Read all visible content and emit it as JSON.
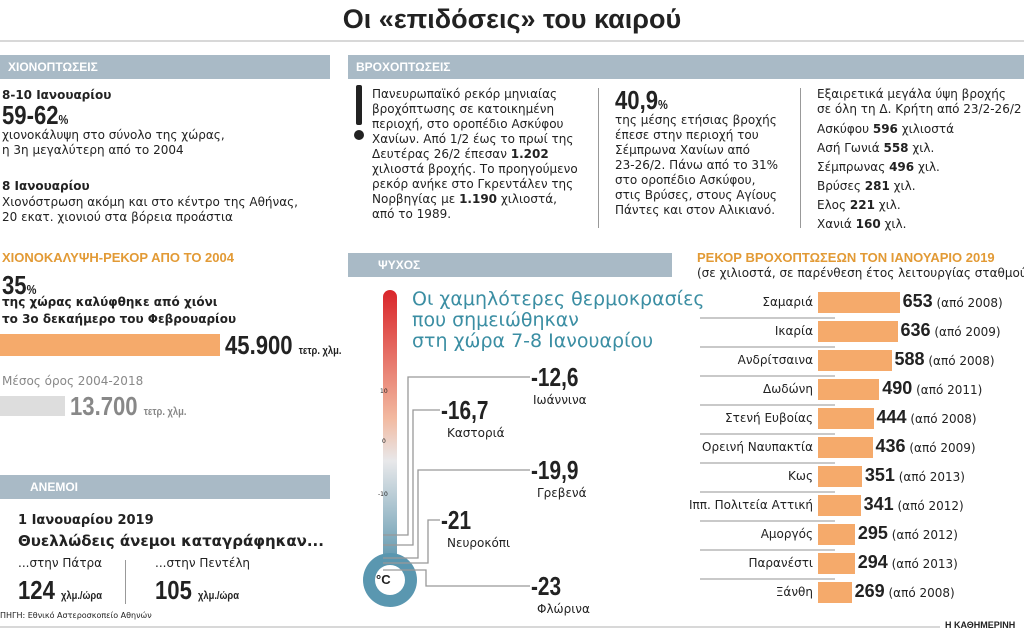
{
  "title": "Οι «επιδόσεις» του καιρού",
  "colors": {
    "header": "#a9bac6",
    "orange": "#f5aa6b",
    "heading_orange": "#e29a35",
    "teal": "#3b8ea3"
  },
  "snow": {
    "header": "ΧΙΟΝΟΠΤΩΣΕΙΣ",
    "date1": "8-10 Ιανουαρίου",
    "pct1": "59-62",
    "pct_sign": "%",
    "text1a": "χιονοκάλυψη στο σύνολο της χώρας,",
    "text1b": "η 3η μεγαλύτερη από το 2004",
    "date2": "8 Ιανουαρίου",
    "text2a": "Χιονόστρωση ακόμη και στο κέντρο της Αθήνας,",
    "text2b": "20 εκατ. χιονιού στα βόρεια προάστια"
  },
  "cover": {
    "heading": "ΧΙΟΝΟΚΑΛΥΨΗ-ΡΕΚΟΡ ΑΠΟ ΤΟ 2004",
    "pct": "35",
    "pct_sign": "%",
    "text_a": "της χώρας καλύφθηκε από χιόνι",
    "text_b": "το 3ο δεκαήμερο του Φεβρουαρίου",
    "record_value": "45.900",
    "unit": "τετρ. χλμ.",
    "avg_label": "Μέσος όρος 2004-2018",
    "avg_value": "13.700"
  },
  "wind": {
    "header": "ΑΝΕΜΟΙ",
    "date": "1 Ιανουαρίου 2019",
    "headline": "Θυελλώδεις άνεμοι καταγράφηκαν...",
    "loc1": "...στην Πάτρα",
    "val1": "124",
    "loc2": "...στην Πεντέλη",
    "val2": "105",
    "unit": "χλμ./ώρα",
    "source": "ΠΗΓΗ: Εθνικό Αστεροσκοπείο Αθηνών"
  },
  "rain": {
    "header": "ΒΡΟΧΟΠΤΩΣΕΙΣ",
    "note_lines": [
      "Πανευρωπαϊκό ρεκόρ μηνιαίας",
      "βροχόπτωσης σε κατοικημένη",
      "περιοχή, στο οροπέδιο Ασκύφου",
      "Χανίων. Από 1/2 έως το πρωί της"
    ],
    "note_l5a": "Δευτέρας 26/2 έπεσαν ",
    "note_l5b": "1.202",
    "note_l6": "χιλιοστά βροχής. Το προηγούμενο",
    "note_l7": "ρεκόρ ανήκε στο Γκρεντάλεν της",
    "note_l8a": "Νορβηγίας με ",
    "note_l8b": "1.190",
    "note_l8c": " χιλιοστά,",
    "note_l9": "από το 1989.",
    "pct": "40,9",
    "pct_sign": "%",
    "pct_lines": [
      "της μέσης ετήσιας βροχής",
      "έπεσε στην περιοχή του",
      "Σέμπρωνα Χανίων από",
      "23-26/2. Πάνω από το 31%",
      "στο οροπέδιο Ασκύφου,",
      "στις Βρύσες, στους Αγίους",
      "Πάντες και στον Αλικιανό."
    ],
    "crete_lines": [
      "Εξαιρετικά μεγάλα ύψη βροχής",
      "σε όλη τη Δ. Κρήτη από 23/2-26/2"
    ],
    "crete": [
      {
        "place": "Ασκύφου ",
        "value": "596",
        "unit": " χιλιοστά"
      },
      {
        "place": "Ασή Γωνιά ",
        "value": "558",
        "unit": " χιλ."
      },
      {
        "place": "Σέμπρωνας ",
        "value": "496",
        "unit": " χιλ."
      },
      {
        "place": "Βρύσες ",
        "value": "281",
        "unit": " χιλ."
      },
      {
        "place": "Ελος ",
        "value": "221",
        "unit": " χιλ."
      },
      {
        "place": "Χανιά ",
        "value": "160",
        "unit": " χιλ."
      }
    ]
  },
  "cold": {
    "header": "ΨΥΧΟΣ",
    "title_lines": [
      "Οι χαμηλότερες θερμοκρασίες",
      "που σημειώθηκαν",
      "στη χώρα 7-8 Ιανουαρίου"
    ],
    "scale_ticks": [
      "10",
      "0",
      "-10"
    ],
    "unit": "°C",
    "readings": [
      {
        "value": "-12,6",
        "city": "Ιωάννινα"
      },
      {
        "value": "-16,7",
        "city": "Καστοριά"
      },
      {
        "value": "-19,9",
        "city": "Γρεβενά"
      },
      {
        "value": "-21",
        "city": "Νευροκόπι"
      },
      {
        "value": "-23",
        "city": "Φλώρινα"
      }
    ]
  },
  "chart_data": {
    "type": "bar",
    "title": "ΡΕΚΟΡ ΒΡΟΧΟΠΤΩΣΕΩΝ ΤΟΝ ΙΑΝΟΥΑΡΙΟ 2019",
    "subtitle": "(σε χιλιοστά, σε παρένθεση έτος λειτουργίας σταθμού)",
    "categories": [
      "Σαμαριά",
      "Ικαρία",
      "Ανδρίτσαινα",
      "Δωδώνη",
      "Στενή Ευβοίας",
      "Ορεινή Ναυπακτία",
      "Κως",
      "Ιππ. Πολιτεία Αττική",
      "Αμοργός",
      "Παρανέστι",
      "Ξάνθη"
    ],
    "values": [
      653,
      636,
      588,
      490,
      444,
      436,
      351,
      341,
      295,
      294,
      269
    ],
    "notes": [
      "(από 2008)",
      "(από 2009)",
      "(από 2008)",
      "(από 2011)",
      "(από 2008)",
      "(από 2009)",
      "(από 2013)",
      "(από 2012)",
      "(από 2012)",
      "(από 2013)",
      "(από 2008)"
    ],
    "orientation": "horizontal"
  },
  "credit": "Η ΚΑΘΗΜΕΡΙΝΗ"
}
